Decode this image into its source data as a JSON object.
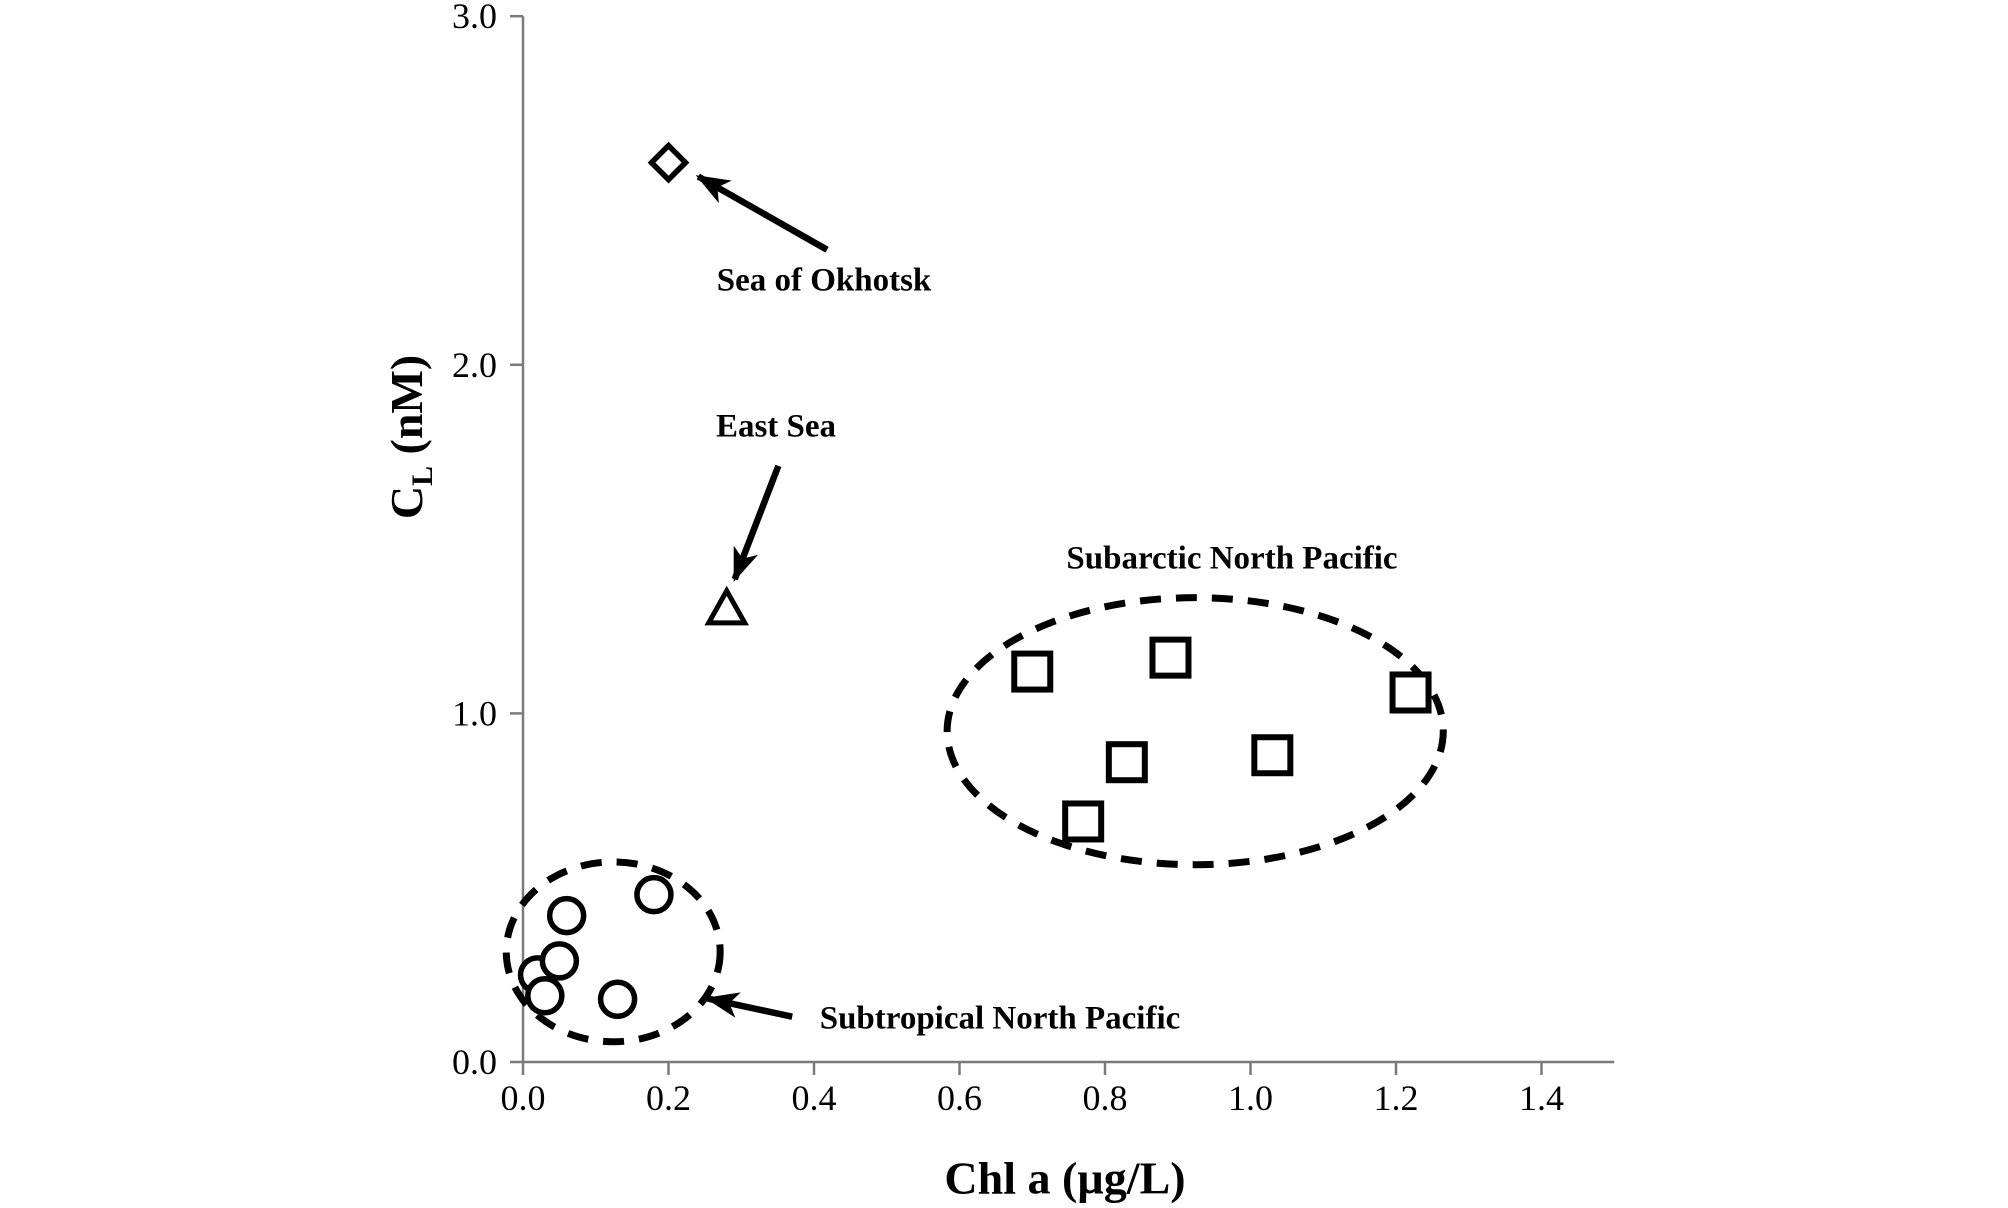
{
  "figure": {
    "background_color": "#ffffff",
    "axis_color": "#7a7a7a",
    "marker_color": "#000000",
    "y_title": {
      "main": "C",
      "sub": "L",
      "rest": " (nM)"
    }
  },
  "chart_data": {
    "type": "scatter",
    "title": "",
    "xlabel": "Chl a (µg/L)",
    "ylabel": "CL (nM)",
    "xlim": [
      0,
      1.5
    ],
    "ylim": [
      0,
      3.0
    ],
    "x_ticks": [
      0.0,
      0.2,
      0.4,
      0.6,
      0.8,
      1.0,
      1.2,
      1.4
    ],
    "y_ticks": [
      0.0,
      1.0,
      2.0,
      3.0
    ],
    "grid": false,
    "legend": "none (labeled by annotations with arrows)",
    "series": [
      {
        "name": "Sea of Okhotsk",
        "marker": "diamond",
        "points": [
          [
            0.2,
            2.58
          ]
        ]
      },
      {
        "name": "East Sea",
        "marker": "triangle",
        "points": [
          [
            0.28,
            1.3
          ]
        ]
      },
      {
        "name": "Subarctic North Pacific",
        "marker": "square",
        "points": [
          [
            0.7,
            1.12
          ],
          [
            0.77,
            0.69
          ],
          [
            0.83,
            0.86
          ],
          [
            0.89,
            1.16
          ],
          [
            1.03,
            0.88
          ],
          [
            1.22,
            1.06
          ]
        ]
      },
      {
        "name": "Subtropical North Pacific",
        "marker": "circle",
        "points": [
          [
            0.02,
            0.25
          ],
          [
            0.03,
            0.19
          ],
          [
            0.05,
            0.29
          ],
          [
            0.06,
            0.42
          ],
          [
            0.13,
            0.18
          ],
          [
            0.18,
            0.48
          ]
        ]
      }
    ],
    "annotations": {
      "ellipses": [
        {
          "label": "Subarctic North Pacific",
          "cx": 0.924,
          "cy": 0.949,
          "rx": 0.341,
          "ry": 0.383
        },
        {
          "label": "Subtropical North Pacific",
          "cx": 0.124,
          "cy": 0.316,
          "rx": 0.147,
          "ry": 0.258
        }
      ],
      "arrows": [
        {
          "label": "Sea of Okhotsk",
          "from": [
            0.418,
            2.33
          ],
          "to": [
            0.241,
            2.54
          ]
        },
        {
          "label": "East Sea",
          "from": [
            0.351,
            1.71
          ],
          "to": [
            0.291,
            1.385
          ]
        },
        {
          "label": "Subtropical North Pacific",
          "from": [
            0.37,
            0.13
          ],
          "to": [
            0.254,
            0.182
          ]
        }
      ]
    },
    "labels": {
      "sea_of_okhotsk": "Sea of Okhotsk",
      "east_sea": "East Sea",
      "subarctic": "Subarctic North Pacific",
      "subtropical": "Subtropical North Pacific"
    }
  }
}
